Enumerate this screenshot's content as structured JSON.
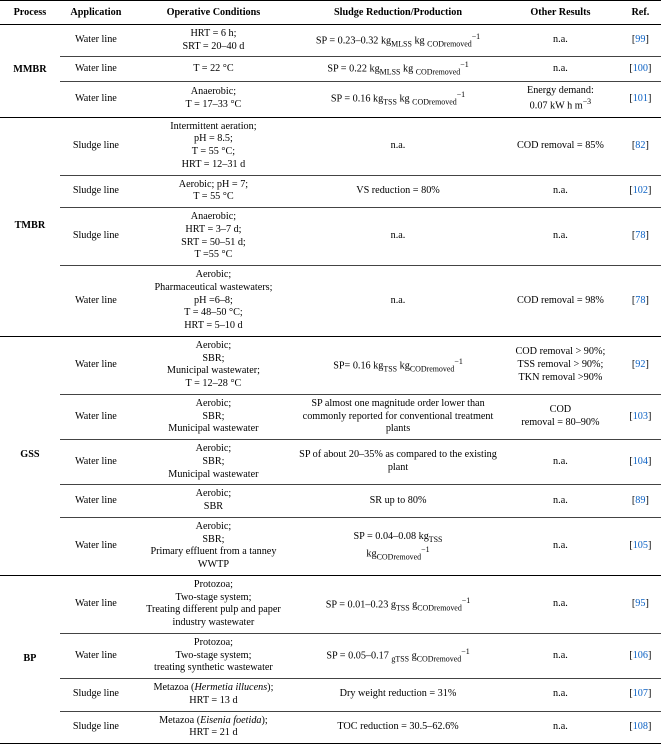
{
  "table": {
    "headers": {
      "process": "Process",
      "application": "Application",
      "conditions": "Operative Conditions",
      "reduction": "Sludge Reduction/Production",
      "other": "Other Results",
      "ref": "Ref."
    },
    "groups": [
      {
        "process": "MMBR",
        "rows": [
          {
            "application": "Water line",
            "conditions": "HRT = 6 h;<br>SRT = 20–40 d",
            "reduction": "SP = 0.23–0.32 kg<sub>MLSS</sub> kg <sub>CODremoved</sub><sup>−1</sup>",
            "other": "n.a.",
            "ref": "99"
          },
          {
            "application": "Water line",
            "conditions": "T = 22 °C",
            "reduction": "SP = 0.22 kg<sub>MLSS</sub> kg <sub>CODremoved</sub><sup>−1</sup>",
            "other": "n.a.",
            "ref": "100"
          },
          {
            "application": "Water line",
            "conditions": "Anaerobic;<br>T = 17–33 °C",
            "reduction": "SP = 0.16 kg<sub>TSS</sub> kg <sub>CODremoved</sub><sup>−1</sup>",
            "other": "Energy demand:<br>0.07 kW h m<sup>−3</sup>",
            "ref": "101"
          }
        ]
      },
      {
        "process": "TMBR",
        "rows": [
          {
            "application": "Sludge line",
            "conditions": "Intermittent aeration;<br>pH = 8.5;<br>T = 55 °C;<br>HRT = 12–31 d",
            "reduction": "n.a.",
            "other": "COD removal = 85%",
            "ref": "82"
          },
          {
            "application": "Sludge line",
            "conditions": "Aerobic; pH = 7;<br>T = 55 °C",
            "reduction": "VS reduction = 80%",
            "other": "n.a.",
            "ref": "102"
          },
          {
            "application": "Sludge line",
            "conditions": "Anaerobic;<br>HRT = 3–7 d;<br>SRT = 50–51 d;<br>T =55 °C",
            "reduction": "n.a.",
            "other": "n.a.",
            "ref": "78"
          },
          {
            "application": "Water line",
            "conditions": "Aerobic;<br>Pharmaceutical wastewaters;<br>pH =6–8;<br>T = 48–50 °C;<br>HRT = 5–10 d",
            "reduction": "n.a.",
            "other": "COD removal = 98%",
            "ref": "78"
          }
        ]
      },
      {
        "process": "GSS",
        "rows": [
          {
            "application": "Water line",
            "conditions": "Aerobic;<br>SBR;<br>Municipal wastewater;<br>T = 12–28 °C",
            "reduction": "SP= 0.16 kg<sub>TSS</sub> kg<sub>CODremoved</sub><sup>−1</sup>",
            "other": "COD removal &gt; 90%;<br>TSS removal &gt; 90%;<br>TKN removal &gt;90%",
            "ref": "92"
          },
          {
            "application": "Water line",
            "conditions": "Aerobic;<br>SBR;<br>Municipal wastewater",
            "reduction": "SP almost one magnitude order lower than commonly reported for conventional treatment plants",
            "other": "COD<br>removal = 80–90%",
            "ref": "103"
          },
          {
            "application": "Water line",
            "conditions": "Aerobic;<br>SBR;<br>Municipal wastewater",
            "reduction": "SP of about 20–35% as compared to the existing plant",
            "other": "n.a.",
            "ref": "104"
          },
          {
            "application": "Water line",
            "conditions": "Aerobic;<br>SBR",
            "reduction": "SR up to 80%",
            "other": "n.a.",
            "ref": "89"
          },
          {
            "application": "Water line",
            "conditions": "Aerobic;<br>SBR;<br>Primary effluent from a tanney WWTP",
            "reduction": "SP = 0.04–0.08 kg<sub>TSS</sub><br>kg<sub>CODremoved</sub><sup>−1</sup>",
            "other": "n.a.",
            "ref": "105"
          }
        ]
      },
      {
        "process": "BP",
        "rows": [
          {
            "application": "Water line",
            "conditions": "Protozoa;<br>Two-stage system;<br>Treating different pulp and paper industry wastewater",
            "reduction": "SP = 0.01–0.23 g<sub>TSS</sub> g<sub>CODremoved</sub><sup>−1</sup>",
            "other": "n.a.",
            "ref": "95"
          },
          {
            "application": "Water line",
            "conditions": "Protozoa;<br>Two-stage system;<br>treating synthetic wastewater",
            "reduction": "SP = 0.05–0.17 <sub>gTSS</sub> g<sub>CODremoved</sub><sup>−1</sup>",
            "other": "n.a.",
            "ref": "106"
          },
          {
            "application": "Sludge line",
            "conditions": "Metazoa (<i>Hermetia illucens</i>);<br>HRT = 13 d",
            "reduction": "Dry weight reduction = 31%",
            "other": "n.a.",
            "ref": "107"
          },
          {
            "application": "Sludge line",
            "conditions": "Metazoa (<i>Eisenia foetida</i>);<br>HRT = 21 d",
            "reduction": "TOC reduction = 30.5–62.6%",
            "other": "n.a.",
            "ref": "108"
          }
        ]
      }
    ],
    "colors": {
      "text": "#000000",
      "link": "#0b61c4",
      "border": "#000000",
      "rowborder": "#444444",
      "background": "#ffffff"
    }
  }
}
